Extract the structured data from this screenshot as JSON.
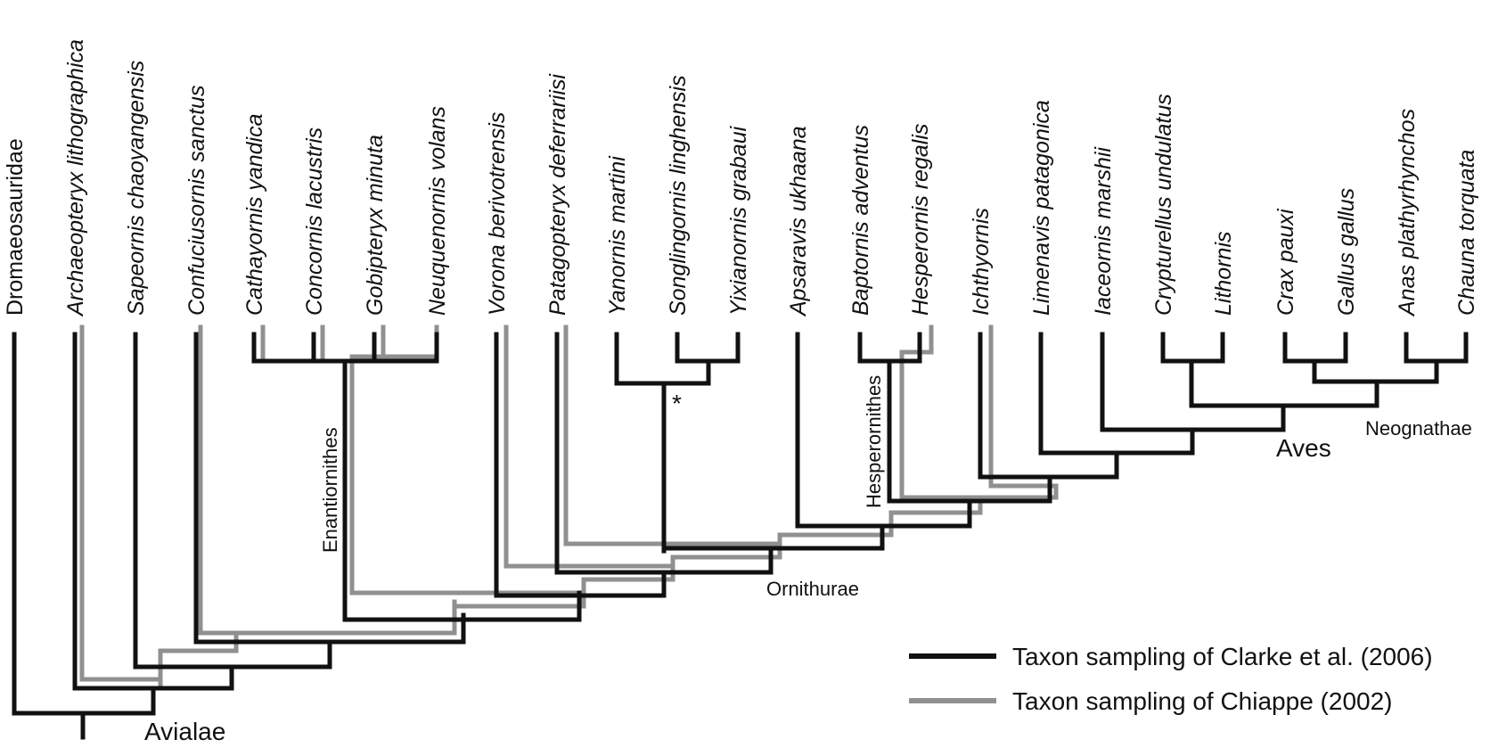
{
  "taxa": [
    {
      "name": "Dromaeosauridae",
      "italic": false
    },
    {
      "name": "Archaeopteryx lithographica",
      "italic": true
    },
    {
      "name": "Sapeornis chaoyangensis",
      "italic": true
    },
    {
      "name": "Confuciusornis sanctus",
      "italic": true
    },
    {
      "name": "Cathayornis yandica",
      "italic": true
    },
    {
      "name": "Concornis lacustris",
      "italic": true
    },
    {
      "name": "Gobipteryx minuta",
      "italic": true
    },
    {
      "name": "Neuquenornis volans",
      "italic": true
    },
    {
      "name": "Vorona berivotrensis",
      "italic": true
    },
    {
      "name": "Patagopteryx deferrariisi",
      "italic": true
    },
    {
      "name": "Yanornis martini",
      "italic": true
    },
    {
      "name": "Songlingornis linghensis",
      "italic": true
    },
    {
      "name": "Yixianornis grabaui",
      "italic": true
    },
    {
      "name": "Apsaravis ukhaana",
      "italic": true
    },
    {
      "name": "Baptornis adventus",
      "italic": true
    },
    {
      "name": "Hesperornis regalis",
      "italic": true
    },
    {
      "name": "Ichthyornis",
      "italic": true
    },
    {
      "name": "Limenavis patagonica",
      "italic": true
    },
    {
      "name": "Iaceornis marshii",
      "italic": true
    },
    {
      "name": "Crypturellus undulatus",
      "italic": true
    },
    {
      "name": "Lithornis",
      "italic": true
    },
    {
      "name": "Crax pauxi",
      "italic": true
    },
    {
      "name": "Gallus gallus",
      "italic": true
    },
    {
      "name": "Anas plathyrhynchos",
      "italic": true
    },
    {
      "name": "Chauna torquata",
      "italic": true
    }
  ],
  "clades": {
    "avialae": "Avialae",
    "enantiornithes": "Enantiornithes",
    "ornithurae": "Ornithurae",
    "hesperornithes": "Hesperornithes",
    "aves": "Aves",
    "neognathae": "Neognathae",
    "asterisk": "*"
  },
  "legend": {
    "black_label": "Taxon sampling of Clarke et al. (2006)",
    "gray_label": "Taxon sampling of Chiappe (2002)",
    "black_color": "#111111",
    "gray_color": "#909090"
  }
}
